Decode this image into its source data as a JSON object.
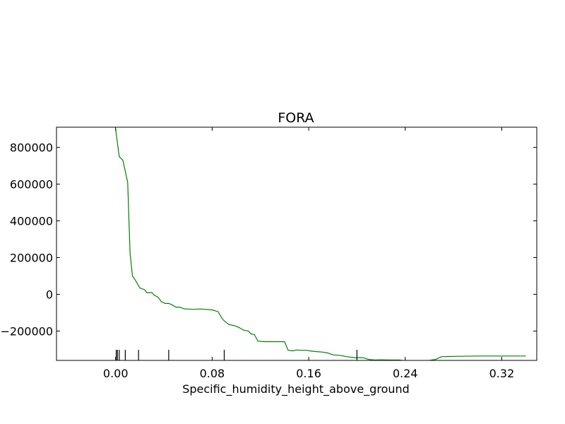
{
  "chart_data": {
    "type": "line",
    "title": "FORA",
    "xlabel": "Specific_humidity_height_above_ground",
    "ylabel": "",
    "xlim": [
      -0.049,
      0.349
    ],
    "ylim": [
      -360000,
      910000
    ],
    "xticks": [
      0.0,
      0.08,
      0.16,
      0.24,
      0.32
    ],
    "xtick_labels": [
      "0.00",
      "0.08",
      "0.16",
      "0.24",
      "0.32"
    ],
    "yticks": [
      -200000,
      0,
      200000,
      400000,
      600000,
      800000
    ],
    "ytick_labels": [
      "−200000",
      "0",
      "200000",
      "400000",
      "600000",
      "800000"
    ],
    "grid": false,
    "line_color": "#008000",
    "rug_x": [
      0.0005,
      0.0015,
      0.003,
      0.008,
      0.019,
      0.044,
      0.09,
      0.2
    ],
    "series": [
      {
        "x": [
          0.0,
          0.003,
          0.006,
          0.01,
          0.012,
          0.014,
          0.017,
          0.02,
          0.024,
          0.026,
          0.03,
          0.032,
          0.035,
          0.038,
          0.041,
          0.044,
          0.046,
          0.05,
          0.053,
          0.057,
          0.06,
          0.064,
          0.07,
          0.08,
          0.085,
          0.088,
          0.09,
          0.094,
          0.098,
          0.102,
          0.106,
          0.11,
          0.112,
          0.115,
          0.118,
          0.123,
          0.128,
          0.134,
          0.14,
          0.143,
          0.147,
          0.15,
          0.153,
          0.158,
          0.161,
          0.166,
          0.172,
          0.176,
          0.18,
          0.185,
          0.192,
          0.198,
          0.205,
          0.21,
          0.215,
          0.22,
          0.228,
          0.235,
          0.24,
          0.245,
          0.25,
          0.26,
          0.265,
          0.27,
          0.28,
          0.3,
          0.34
        ],
        "y": [
          900000,
          750000,
          730000,
          610000,
          220000,
          100000,
          70000,
          35000,
          25000,
          8000,
          10000,
          -5000,
          -15000,
          -40000,
          -50000,
          -50000,
          -55000,
          -70000,
          -70000,
          -80000,
          -80000,
          -82000,
          -80000,
          -85000,
          -95000,
          -130000,
          -145000,
          -165000,
          -170000,
          -180000,
          -195000,
          -200000,
          -215000,
          -220000,
          -255000,
          -258000,
          -258000,
          -258000,
          -258000,
          -305000,
          -308000,
          -303000,
          -305000,
          -305000,
          -308000,
          -312000,
          -315000,
          -320000,
          -330000,
          -332000,
          -340000,
          -345000,
          -345000,
          -355000,
          -358000,
          -357000,
          -358000,
          -358000,
          -362000,
          -362000,
          -362000,
          -360000,
          -355000,
          -340000,
          -338000,
          -336000,
          -336000
        ]
      }
    ]
  }
}
